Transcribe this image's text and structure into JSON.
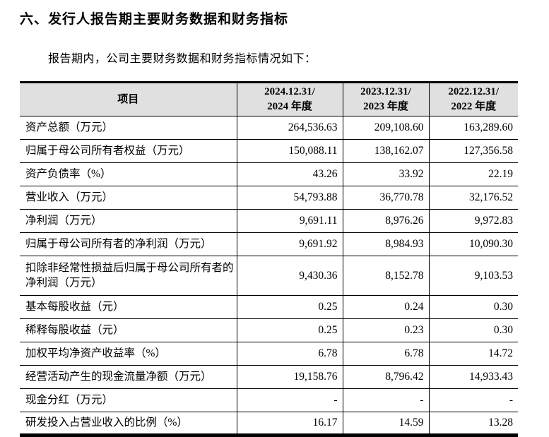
{
  "page": {
    "title": "六、发行人报告期主要财务数据和财务指标",
    "intro": "报告期内，公司主要财务数据和财务指标情况如下："
  },
  "table": {
    "header": {
      "item_label": "项目",
      "periods": [
        {
          "line1": "2024.12.31/",
          "line2": "2024 年度"
        },
        {
          "line1": "2023.12.31/",
          "line2": "2023 年度"
        },
        {
          "line1": "2022.12.31/",
          "line2": "2022 年度"
        }
      ]
    },
    "rows": [
      {
        "label": "资产总额（万元）",
        "values": [
          "264,536.63",
          "209,108.60",
          "163,289.60"
        ],
        "tall": false
      },
      {
        "label": "归属于母公司所有者权益（万元）",
        "values": [
          "150,088.11",
          "138,162.07",
          "127,356.58"
        ],
        "tall": false
      },
      {
        "label": "资产负债率（%）",
        "values": [
          "43.26",
          "33.92",
          "22.19"
        ],
        "tall": false
      },
      {
        "label": "营业收入（万元）",
        "values": [
          "54,793.88",
          "36,770.78",
          "32,176.52"
        ],
        "tall": false
      },
      {
        "label": "净利润（万元）",
        "values": [
          "9,691.11",
          "8,976.26",
          "9,972.83"
        ],
        "tall": false
      },
      {
        "label": "归属于母公司所有者的净利润（万元）",
        "values": [
          "9,691.92",
          "8,984.93",
          "10,090.30"
        ],
        "tall": false
      },
      {
        "label": "扣除非经常性损益后归属于母公司所有者的净利润（万元）",
        "values": [
          "9,430.36",
          "8,152.78",
          "9,103.53"
        ],
        "tall": true
      },
      {
        "label": "基本每股收益（元）",
        "values": [
          "0.25",
          "0.24",
          "0.30"
        ],
        "tall": false
      },
      {
        "label": "稀释每股收益（元）",
        "values": [
          "0.25",
          "0.23",
          "0.30"
        ],
        "tall": false
      },
      {
        "label": "加权平均净资产收益率（%）",
        "values": [
          "6.78",
          "6.78",
          "14.72"
        ],
        "tall": false
      },
      {
        "label": "经营活动产生的现金流量净额（万元）",
        "values": [
          "19,158.76",
          "8,796.42",
          "14,933.43"
        ],
        "tall": false
      },
      {
        "label": "现金分红（万元）",
        "values": [
          "-",
          "-",
          "-"
        ],
        "tall": false
      },
      {
        "label": "研发投入占营业收入的比例（%）",
        "values": [
          "16.17",
          "14.59",
          "13.28"
        ],
        "tall": false
      }
    ]
  },
  "colors": {
    "header_bg": "#e0e0e0",
    "text": "#000000",
    "border": "#000000",
    "background": "#ffffff"
  }
}
